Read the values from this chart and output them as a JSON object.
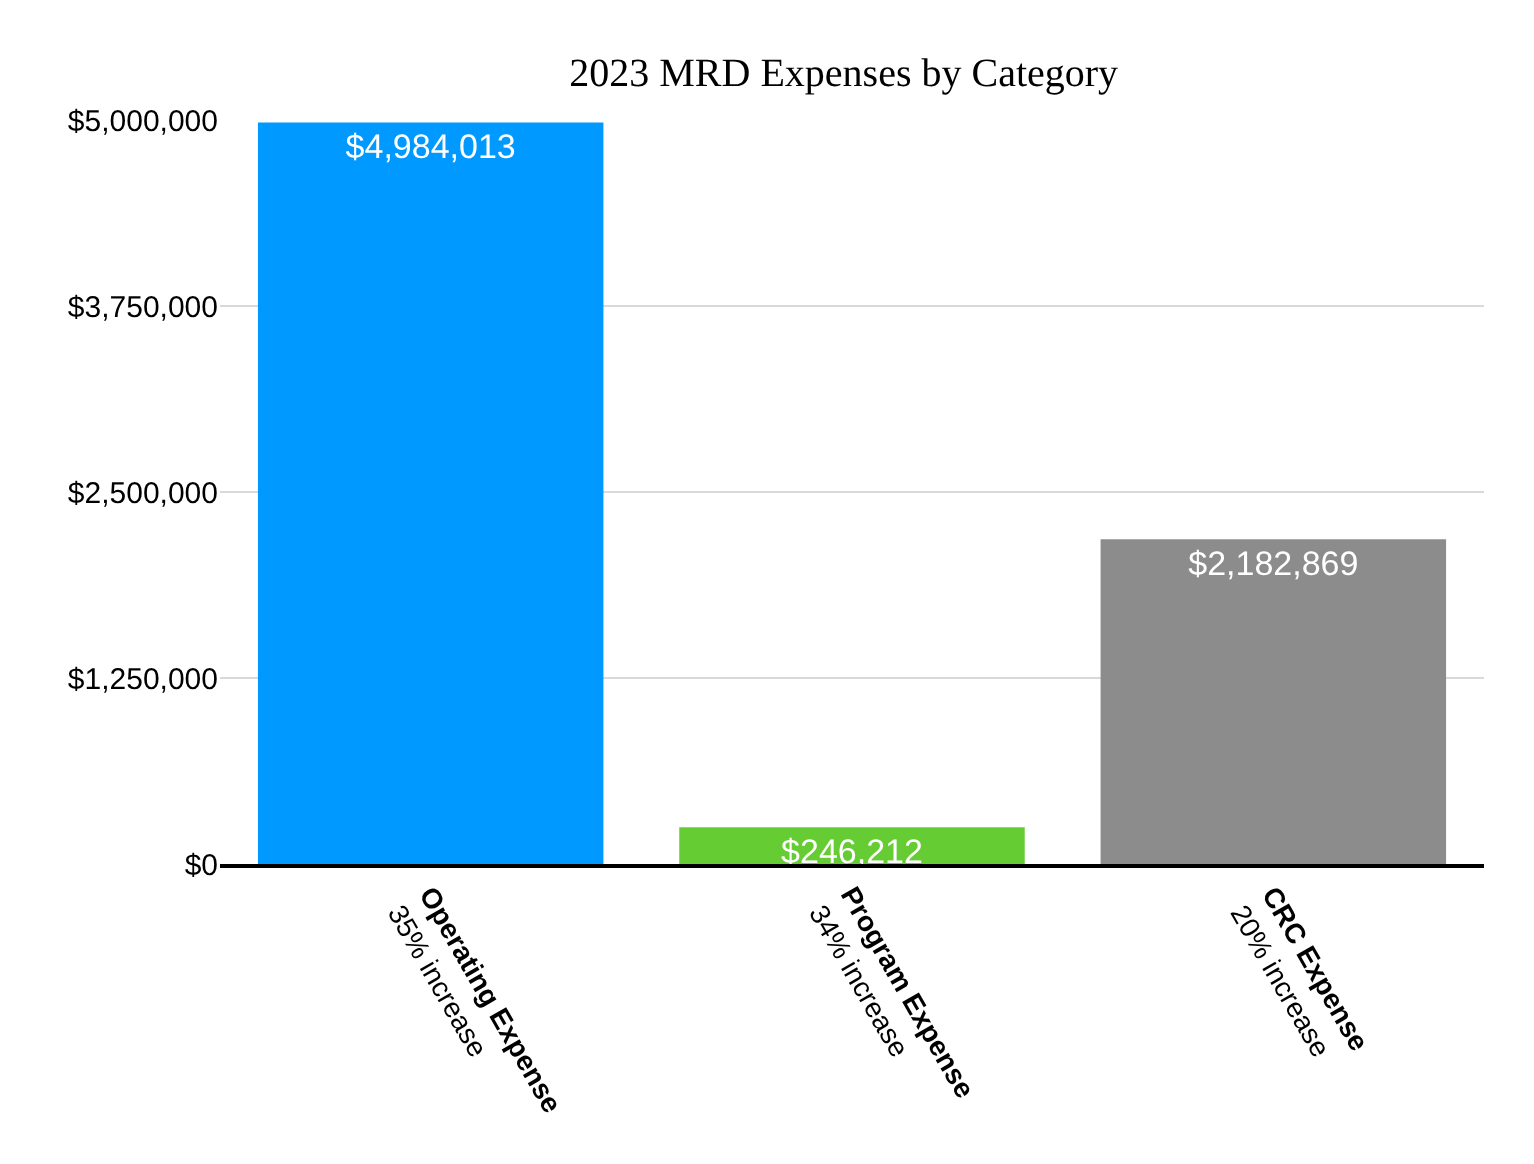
{
  "chart_data": {
    "type": "bar",
    "title": "2023 MRD Expenses by Category",
    "categories": [
      "Operating Expense\n35% increase",
      "Program Expense\n34% increase",
      "CRC Expense\n20% increase"
    ],
    "values": [
      4984013,
      246212,
      2182869
    ],
    "colors": [
      "#0099ff",
      "#66cc33",
      "#8c8c8c"
    ],
    "value_labels": [
      "$4,984,013",
      "$246,212",
      "$2,182,869"
    ],
    "ylim": [
      0,
      5000000
    ],
    "yticks": [
      {
        "value": 0,
        "label": "$0"
      },
      {
        "value": 1250000,
        "label": "$1,250,000"
      },
      {
        "value": 2500000,
        "label": "$2,500,000"
      },
      {
        "value": 3750000,
        "label": "$3,750,000"
      },
      {
        "value": 5000000,
        "label": "$5,000,000"
      }
    ],
    "grid": "y",
    "legend": false
  }
}
